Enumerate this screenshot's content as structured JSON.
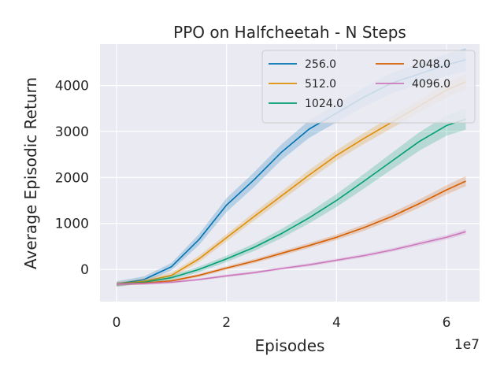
{
  "chart_data": {
    "type": "line",
    "title": "PPO on Halfcheetah - N Steps",
    "xlabel": "Episodes",
    "ylabel": "Average Episodic Return",
    "x_offset_label": "1e7",
    "xlim": [
      -0.3,
      6.6
    ],
    "ylim": [
      -700,
      4900
    ],
    "xticks": [
      0,
      2,
      4,
      6
    ],
    "yticks": [
      0,
      1000,
      2000,
      3000,
      4000
    ],
    "grid": true,
    "legend_position": "top-right",
    "legend_columns": 2,
    "series": [
      {
        "name": "256.0",
        "color": "#0173b2",
        "x": [
          0,
          0.5,
          1,
          1.5,
          2,
          2.5,
          3,
          3.5,
          4,
          4.5,
          5,
          5.5,
          6,
          6.35
        ],
        "y": [
          -320,
          -220,
          60,
          650,
          1400,
          1950,
          2550,
          3050,
          3400,
          3750,
          4050,
          4250,
          4450,
          4560
        ],
        "band": [
          60,
          70,
          80,
          120,
          150,
          160,
          170,
          190,
          200,
          210,
          220,
          230,
          240,
          250
        ]
      },
      {
        "name": "512.0",
        "color": "#de8f05",
        "x": [
          0,
          0.5,
          1,
          1.5,
          2,
          2.5,
          3,
          3.5,
          4,
          4.5,
          5,
          5.5,
          6,
          6.35
        ],
        "y": [
          -320,
          -260,
          -130,
          230,
          690,
          1150,
          1600,
          2050,
          2480,
          2850,
          3200,
          3550,
          3900,
          4080
        ],
        "band": [
          50,
          50,
          60,
          70,
          80,
          90,
          100,
          110,
          110,
          120,
          130,
          140,
          160,
          170
        ]
      },
      {
        "name": "1024.0",
        "color": "#029e73",
        "x": [
          0,
          0.5,
          1,
          1.5,
          2,
          2.5,
          3,
          3.5,
          4,
          4.5,
          5,
          5.5,
          6,
          6.35
        ],
        "y": [
          -320,
          -280,
          -180,
          0,
          230,
          480,
          780,
          1120,
          1500,
          1920,
          2350,
          2780,
          3130,
          3270
        ],
        "band": [
          40,
          40,
          50,
          60,
          70,
          80,
          100,
          120,
          140,
          160,
          180,
          200,
          220,
          230
        ]
      },
      {
        "name": "2048.0",
        "color": "#d55e00",
        "x": [
          0,
          0.5,
          1,
          1.5,
          2,
          2.5,
          3,
          3.5,
          4,
          4.5,
          5,
          5.5,
          6,
          6.35
        ],
        "y": [
          -320,
          -300,
          -250,
          -130,
          30,
          180,
          350,
          520,
          700,
          910,
          1150,
          1430,
          1730,
          1920
        ],
        "band": [
          30,
          30,
          30,
          35,
          40,
          45,
          50,
          55,
          60,
          70,
          80,
          90,
          100,
          110
        ]
      },
      {
        "name": "4096.0",
        "color": "#cc78bc",
        "x": [
          0,
          0.5,
          1,
          1.5,
          2,
          2.5,
          3,
          3.5,
          4,
          4.5,
          5,
          5.5,
          6,
          6.35
        ],
        "y": [
          -320,
          -310,
          -280,
          -220,
          -140,
          -70,
          20,
          100,
          200,
          300,
          420,
          560,
          700,
          820
        ],
        "band": [
          25,
          25,
          25,
          25,
          30,
          30,
          30,
          35,
          35,
          40,
          40,
          45,
          50,
          55
        ]
      }
    ]
  }
}
